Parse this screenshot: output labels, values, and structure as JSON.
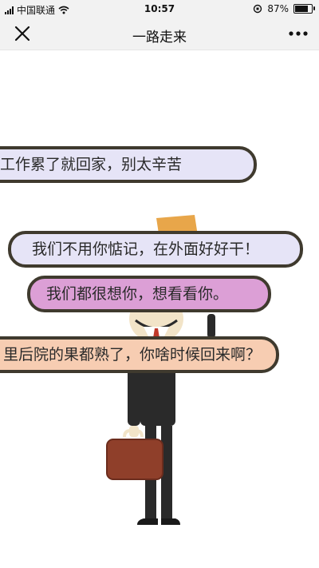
{
  "status_bar": {
    "carrier": "中国联通",
    "time": "10:57",
    "battery": "87%",
    "battery_level": 0.87
  },
  "nav": {
    "title": "一路走来",
    "close_icon": "close-icon",
    "more_icon": "more-icon"
  },
  "bubbles": [
    {
      "text": "工作累了就回家，别太辛苦",
      "color": "#e6e4f7"
    },
    {
      "text": "我们不用你惦记，在外面好好干！",
      "color": "#e6e4f7"
    },
    {
      "text": "我们都很想你，想看看你。",
      "color": "#dc9fd6"
    },
    {
      "text": "里后院的果都熟了，你啥时候回来啊？",
      "color": "#f7cdb2"
    }
  ],
  "colors": {
    "bubble_border": "#3f3a2e",
    "suitcase": "#8f3f2a",
    "suit": "#2a2a2a",
    "hat": "#e8a64a"
  }
}
